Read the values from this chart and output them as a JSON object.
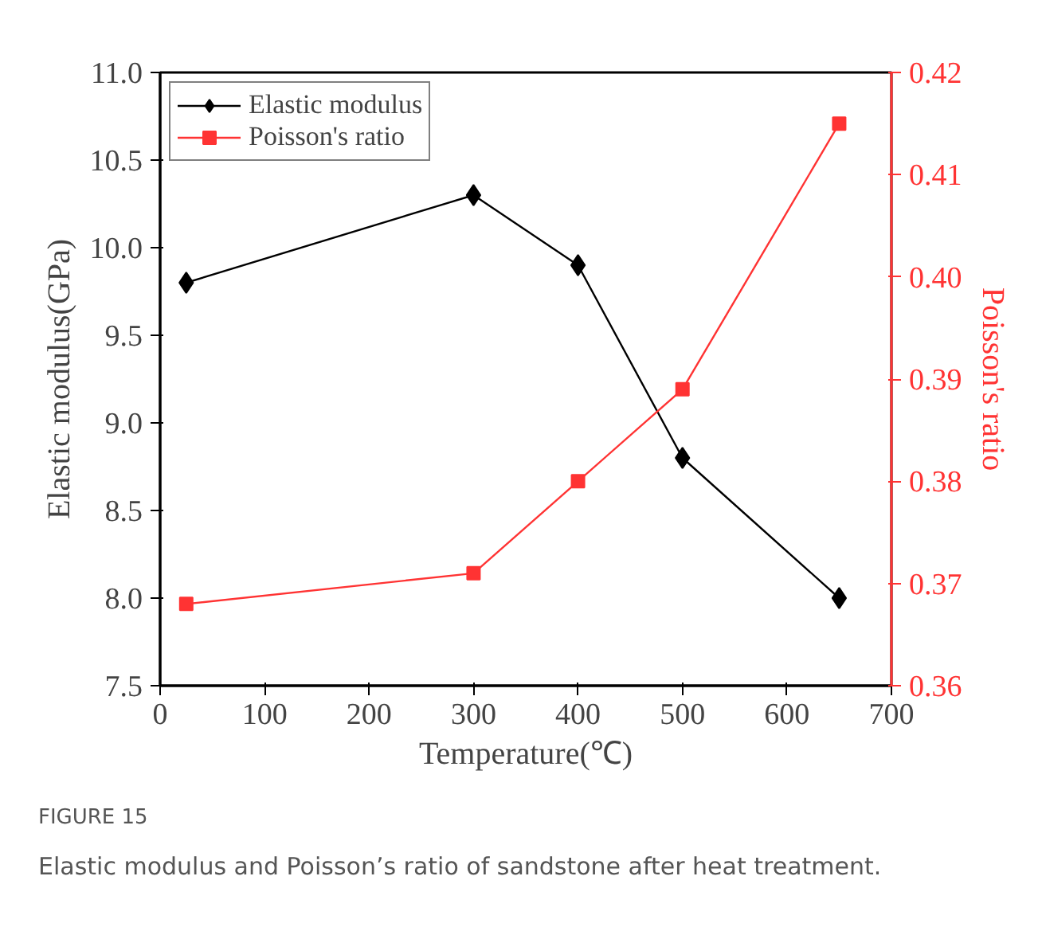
{
  "chart_data": {
    "type": "line",
    "xlabel": "Temperature(℃)",
    "ylabel": "Elastic modulus(GPa)",
    "y2label": "Poisson's ratio",
    "x": [
      25,
      300,
      400,
      500,
      650
    ],
    "series": [
      {
        "name": "Elastic modulus",
        "color": "#000000",
        "marker": "diamond",
        "values": [
          9.8,
          10.3,
          9.9,
          8.8,
          8.0
        ]
      },
      {
        "name": "Poisson's ratio",
        "color": "#ff3333",
        "marker": "square",
        "axis": "y2",
        "values": [
          0.368,
          0.371,
          0.38,
          0.389,
          0.415
        ]
      }
    ],
    "xlim": [
      0,
      700
    ],
    "xticks": [
      0,
      100,
      200,
      300,
      400,
      500,
      600,
      700
    ],
    "ylim": [
      7.5,
      11.0
    ],
    "yticks": [
      {
        "value": 7.5,
        "label": "7.5"
      },
      {
        "value": 8.0,
        "label": "8.0"
      },
      {
        "value": 8.5,
        "label": "8.5"
      },
      {
        "value": 9.0,
        "label": "9.0"
      },
      {
        "value": 9.5,
        "label": "9.5"
      },
      {
        "value": 10.0,
        "label": "10.0"
      },
      {
        "value": 10.5,
        "label": "10.5"
      },
      {
        "value": 11.0,
        "label": "11.0"
      }
    ],
    "y2lim": [
      0.36,
      0.42
    ],
    "y2ticks": [
      0.36,
      0.37,
      0.38,
      0.39,
      {
        "value": 0.4,
        "label": "0.40"
      },
      0.41,
      0.42
    ],
    "legend": "top left",
    "grid": false,
    "annotations": [
      "FIGURE 15",
      "Elastic modulus and Poisson’s ratio of sandstone after heat treatment."
    ]
  }
}
